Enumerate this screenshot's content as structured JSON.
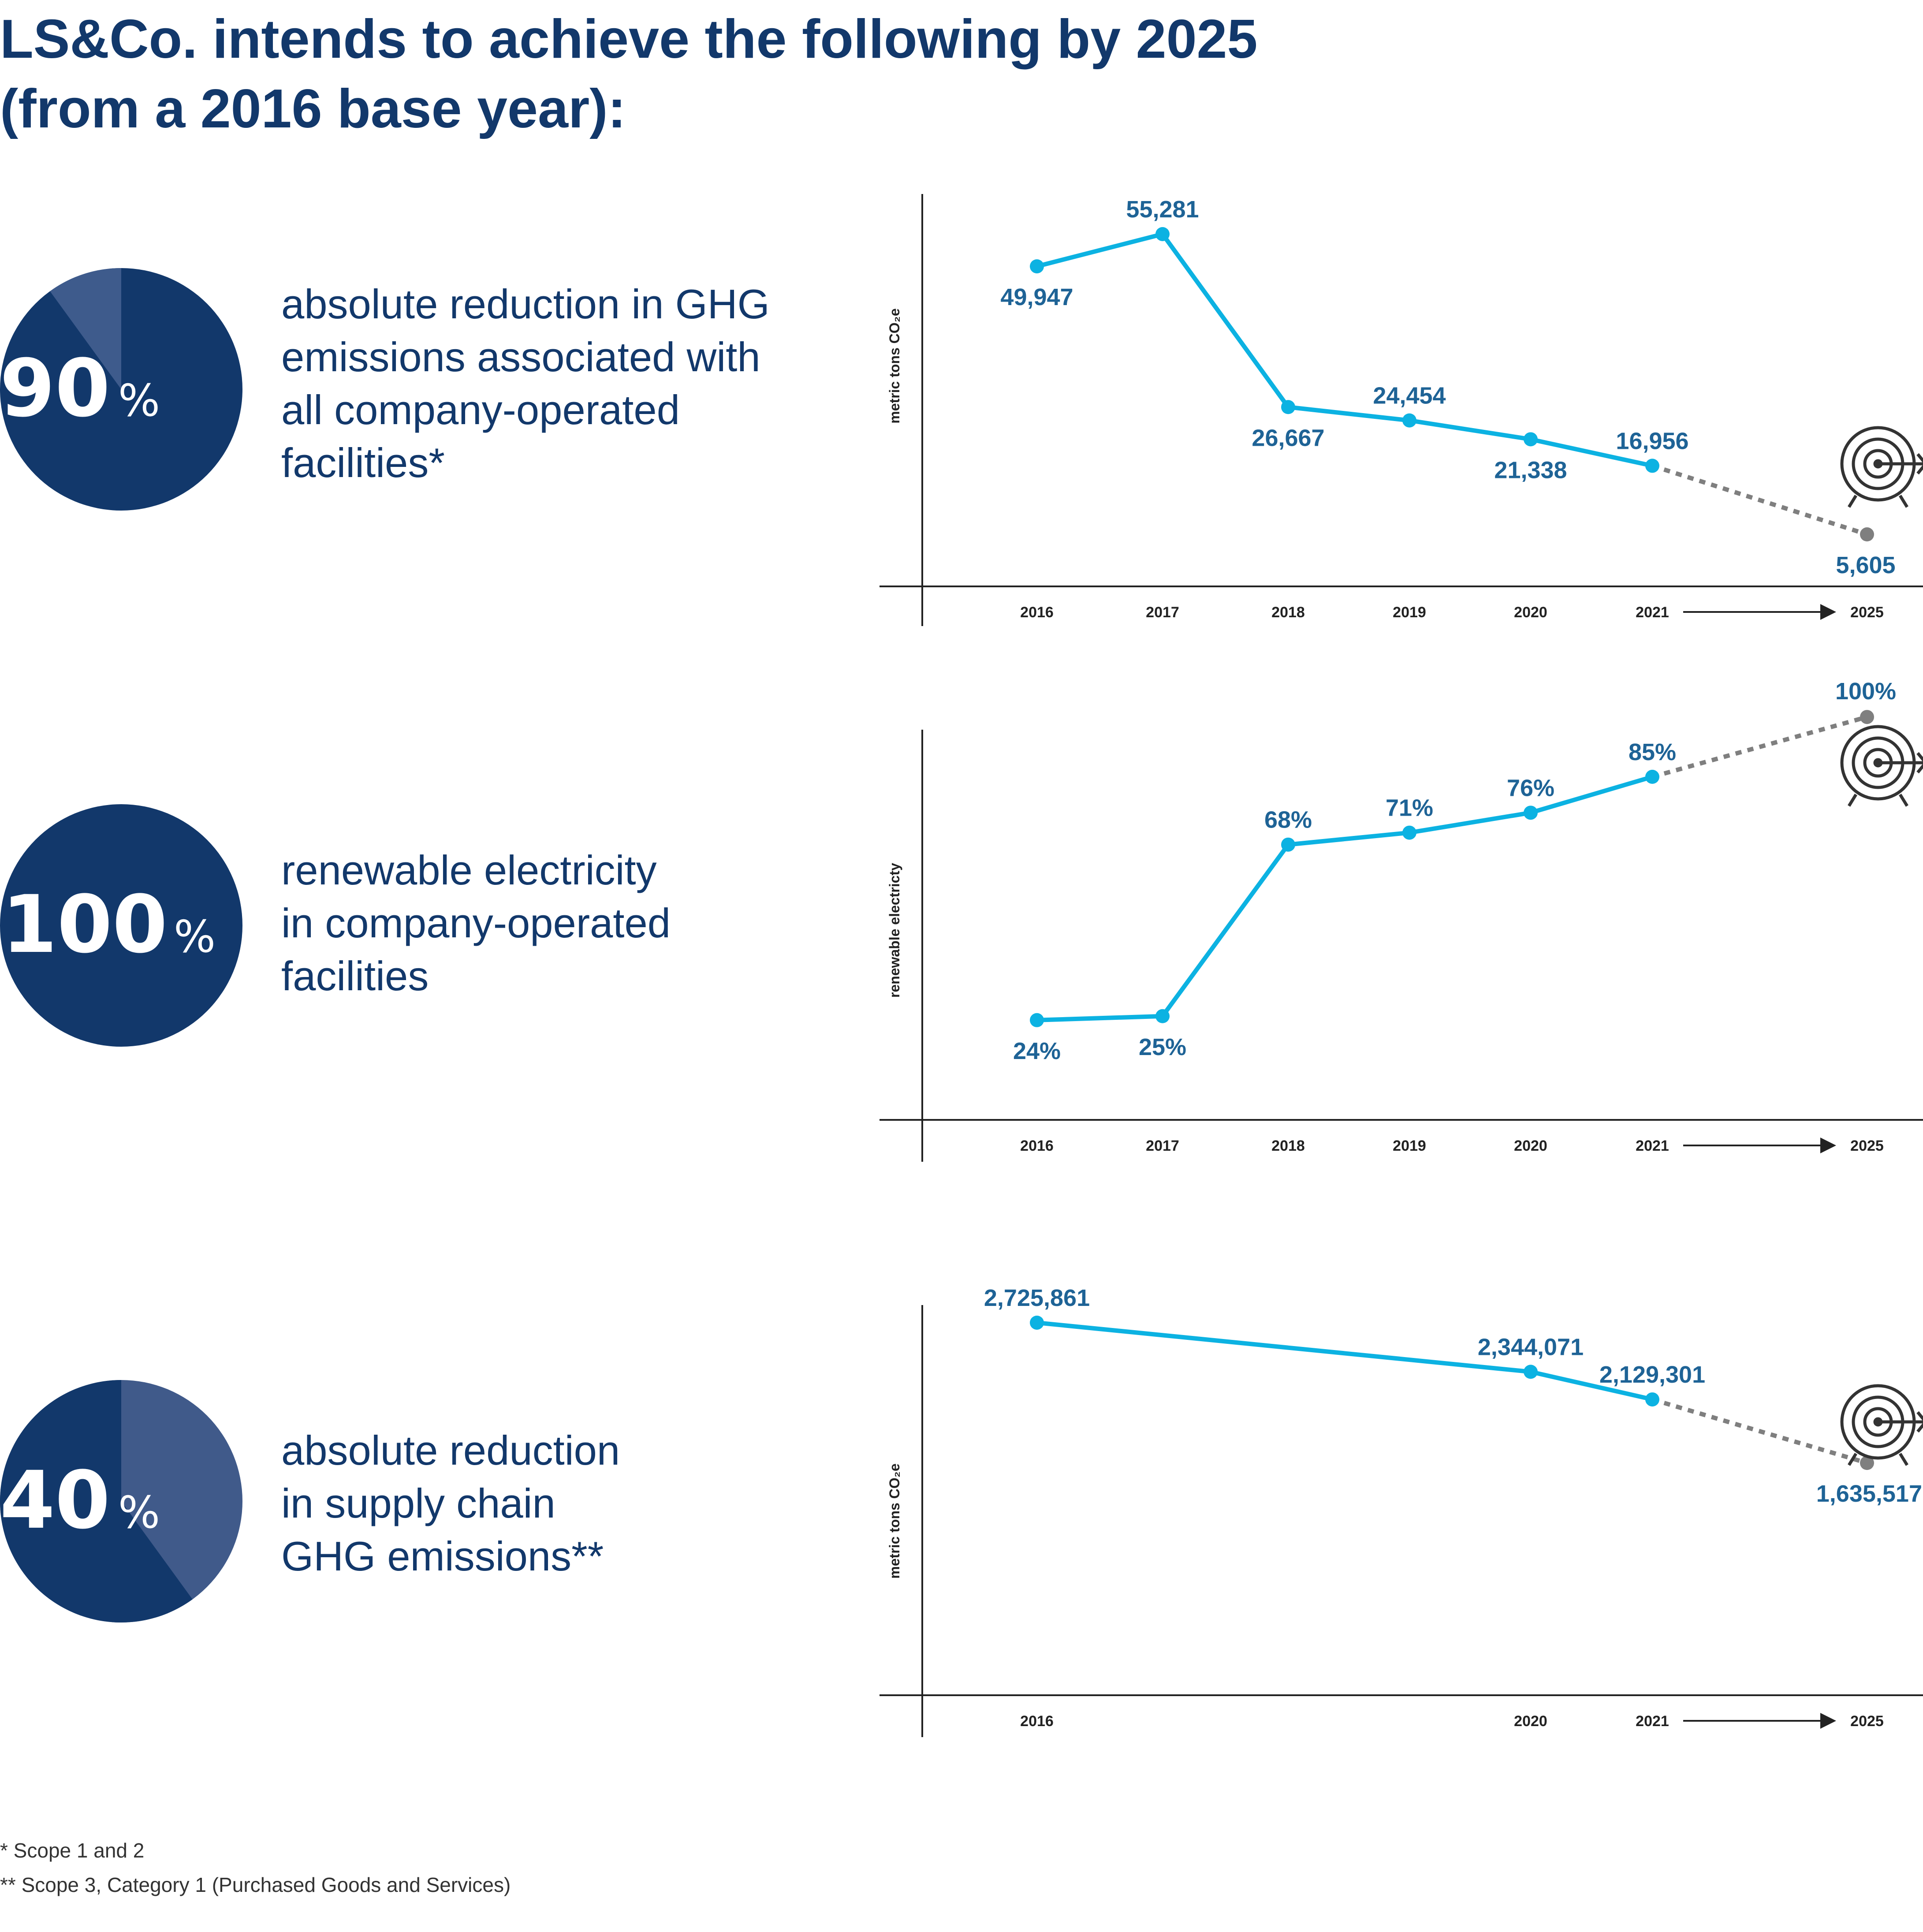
{
  "title": {
    "line1": "LS&Co. intends to achieve the following by 2025",
    "line2": "(from a 2016 base year):"
  },
  "colors": {
    "navy": "#12386b",
    "navy_light": "#405a8a",
    "navy_wedge": "#3e5b8c",
    "line_blue": "#0cb2e2",
    "label_blue": "#1e6396",
    "target_gray": "#7f7f7f",
    "axis": "#222222"
  },
  "goals": [
    {
      "value": "90",
      "unit": "%",
      "fraction": 0.9,
      "desc": [
        "absolute reduction in GHG",
        "emissions associated with",
        "all company-operated",
        "facilities*"
      ]
    },
    {
      "value": "100",
      "unit": "%",
      "fraction": 1.0,
      "desc": [
        "renewable electricity",
        "in company-operated",
        "facilities"
      ]
    },
    {
      "value": "40",
      "unit": "%",
      "fraction": 0.4,
      "desc": [
        "absolute reduction",
        "in supply chain",
        "GHG emissions**"
      ]
    }
  ],
  "chart_data": [
    {
      "type": "line",
      "ylabel": "metric tons CO₂e",
      "x": [
        "2016",
        "2017",
        "2018",
        "2019",
        "2020",
        "2021"
      ],
      "values": [
        49947,
        55281,
        26667,
        24454,
        21338,
        16956
      ],
      "labels": [
        "49,947",
        "55,281",
        "26,667",
        "24,454",
        "21,338",
        "16,956"
      ],
      "target": {
        "x": "2025",
        "value": 5605,
        "label": "5,605"
      },
      "ylim": [
        -3000,
        59000
      ]
    },
    {
      "type": "line",
      "ylabel": "renewable electricty",
      "x": [
        "2016",
        "2017",
        "2018",
        "2019",
        "2020",
        "2021"
      ],
      "values": [
        24,
        25,
        68,
        71,
        76,
        85
      ],
      "labels": [
        "24%",
        "25%",
        "68%",
        "71%",
        "76%",
        "85%"
      ],
      "target": {
        "x": "2025",
        "value": 100,
        "label": "100%"
      },
      "ylim": [
        -1,
        104
      ]
    },
    {
      "type": "line",
      "ylabel": "metric tons CO₂e",
      "x": [
        "2016",
        "2020",
        "2021"
      ],
      "values": [
        2725861,
        2344071,
        2129301
      ],
      "labels": [
        "2,725,861",
        "2,344,071",
        "2,129,301"
      ],
      "target": {
        "x": "2025",
        "value": 1635517,
        "label": "1,635,517"
      },
      "ylim": [
        -170000,
        3000000
      ]
    }
  ],
  "footnotes": [
    "* Scope 1 and 2",
    "** Scope 3, Category 1 (Purchased Goods and Services)"
  ]
}
